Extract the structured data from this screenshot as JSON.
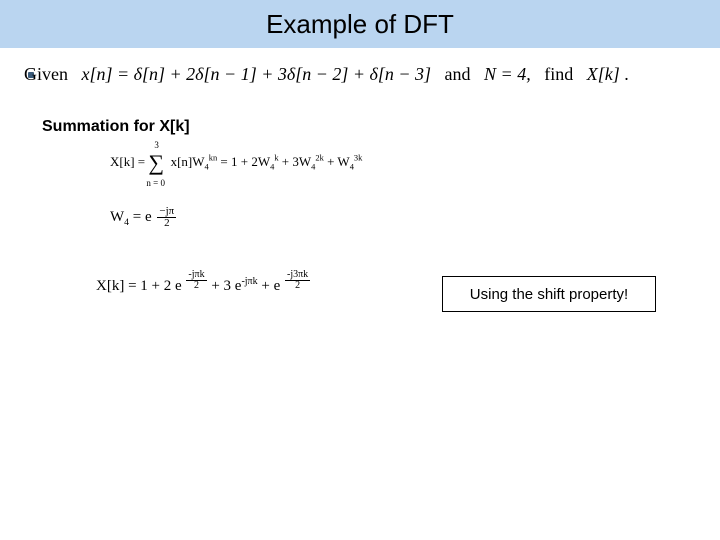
{
  "title": "Example of DFT",
  "given": {
    "prefix": "Given",
    "expr": "x[n] = δ[n] + 2δ[n − 1] + 3δ[n − 2] + δ[n − 3]",
    "and": "and",
    "n": "N = 4,",
    "find": "find",
    "target": "X[k]",
    "dot": "."
  },
  "summation_label": "Summation for X[k]",
  "eq1": {
    "lhs": "X[k] =",
    "sum_top": "3",
    "sum_bot": "n = 0",
    "inside": "x[n]W",
    "sub4": "4",
    "supkn": "kn",
    "rhs": " = 1 + 2W",
    "supk": "k",
    "plus3w": " + 3W",
    "sup2k": "2k",
    "plusw": " + W",
    "sup3k": "3k"
  },
  "eq2": {
    "lhs": "W",
    "sub": "4",
    "eq": " = e",
    "num": "−jπ",
    "den": "2"
  },
  "eq3": {
    "lhs": "X[k] =  1 + 2 e",
    "f1num": "-jπk",
    "f1den": "2",
    "mid1": " + 3 e",
    "exp2": "-jπk",
    "mid2": " + e",
    "f2num": "-j3πk",
    "f2den": "2"
  },
  "callout": "Using the shift property!"
}
